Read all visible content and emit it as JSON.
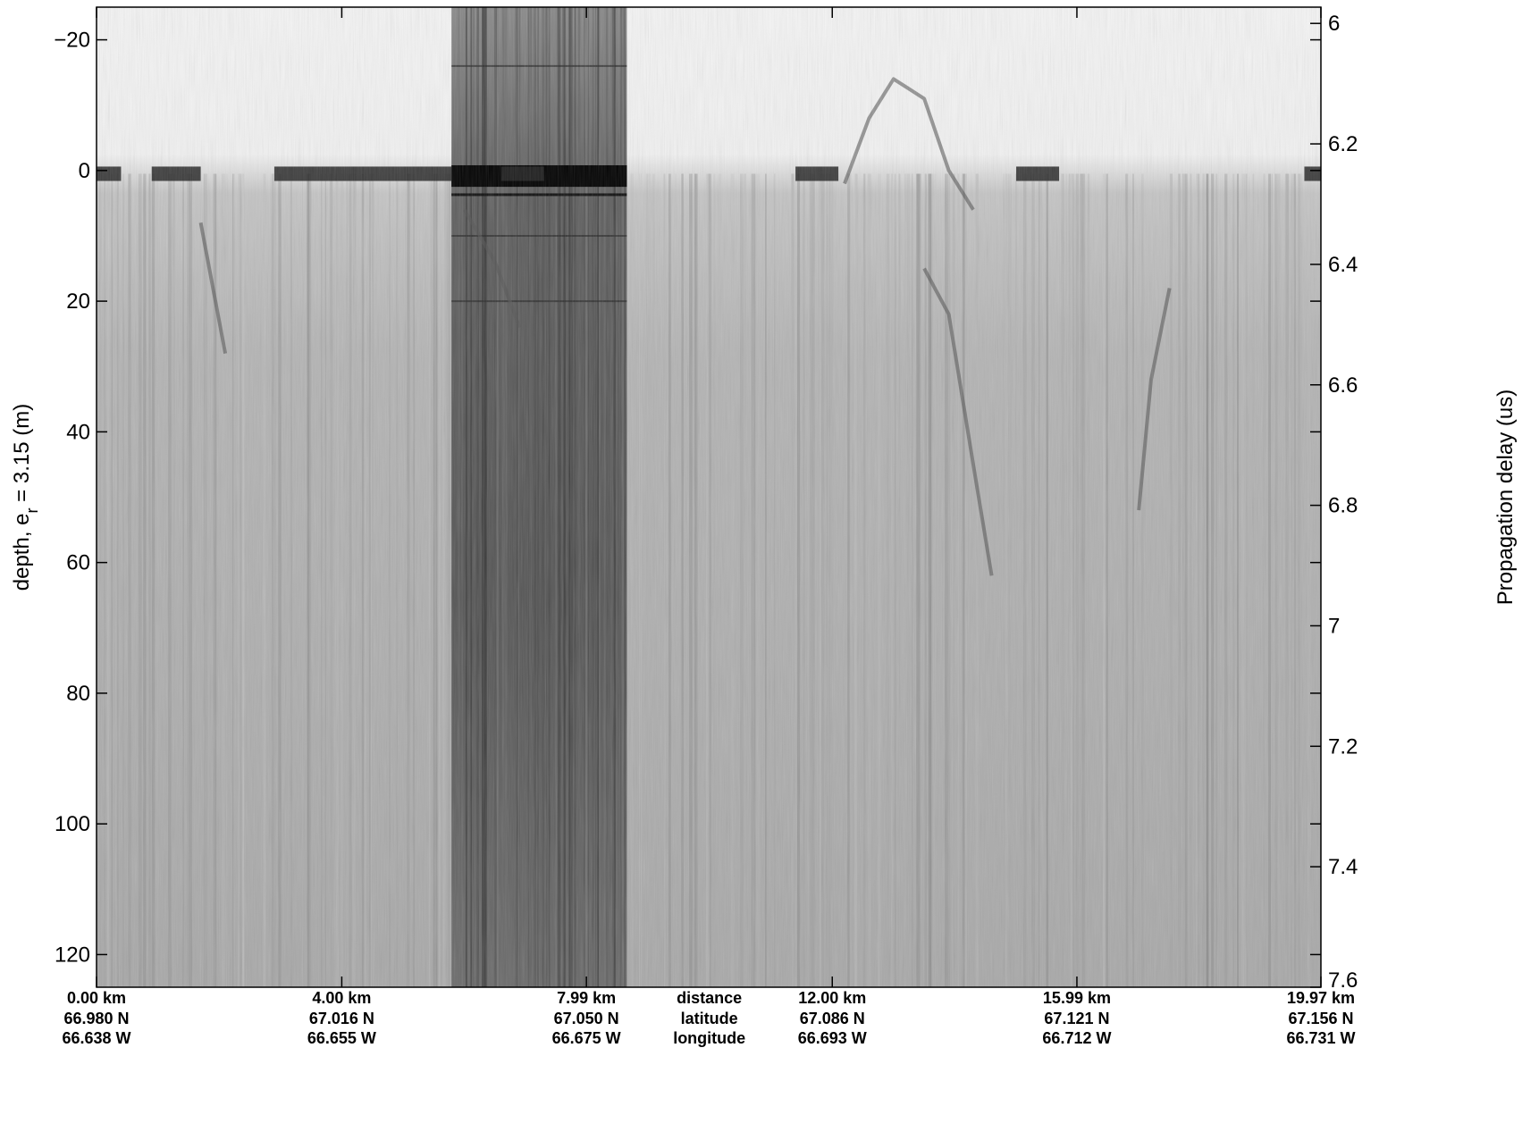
{
  "chart_data": {
    "type": "heatmap",
    "colormap": "grayscale (white = weak return, black = strong return)",
    "left_axis": {
      "label_prefix": "depth, e",
      "label_sub": "r",
      "label_suffix": " = 3.15 (m)",
      "range": [
        -25,
        125
      ],
      "reversed": true,
      "ticks": [
        -20,
        0,
        20,
        40,
        60,
        80,
        100,
        120
      ],
      "tick_labels": [
        "−20",
        "0",
        "20",
        "40",
        "60",
        "80",
        "100",
        "120"
      ]
    },
    "right_axis": {
      "label": "Propagation delay (us)",
      "range": [
        5.973,
        7.6
      ],
      "reversed": true,
      "ticks": [
        6,
        6.2,
        6.4,
        6.6,
        6.8,
        7,
        7.2,
        7.4,
        7.6
      ],
      "tick_labels": [
        "6",
        "6.2",
        "6.4",
        "6.6",
        "6.8",
        "7",
        "7.2",
        "7.4",
        "7.6"
      ]
    },
    "x_axis": {
      "range": [
        0,
        19.97
      ],
      "ticks": [
        0,
        4.0,
        7.99,
        12.0,
        15.99,
        19.97
      ],
      "row_titles": [
        "distance",
        "latitude",
        "longitude"
      ],
      "distance_labels": [
        "0.00 km",
        "4.00 km",
        "7.99 km",
        "12.00 km",
        "15.99 km",
        "19.97 km"
      ],
      "latitude_labels": [
        "66.980 N",
        "67.016 N",
        "67.050 N",
        "67.086 N",
        "67.121 N",
        "67.156 N"
      ],
      "longitude_labels": [
        "66.638 W",
        "66.655 W",
        "66.675 W",
        "66.693 W",
        "66.712 W",
        "66.731 W"
      ]
    },
    "features": {
      "surface_reflection_depth_m": 0,
      "strong_band_km": [
        5.79,
        8.65
      ],
      "surface_segments_km": [
        [
          0.0,
          0.4
        ],
        [
          0.9,
          1.7
        ],
        [
          2.9,
          5.8
        ],
        [
          6.6,
          7.3
        ],
        [
          11.4,
          12.1
        ],
        [
          15.0,
          15.7
        ],
        [
          19.7,
          19.97
        ]
      ],
      "diffraction_curves": [
        {
          "points_km_m": [
            [
              12.2,
              2
            ],
            [
              12.6,
              -8
            ],
            [
              13.0,
              -14
            ],
            [
              13.5,
              -11
            ],
            [
              13.9,
              0
            ],
            [
              14.3,
              6
            ]
          ]
        },
        {
          "points_km_m": [
            [
              13.5,
              15
            ],
            [
              13.9,
              22
            ],
            [
              14.3,
              45
            ],
            [
              14.6,
              62
            ]
          ]
        },
        {
          "points_km_m": [
            [
              17.5,
              18
            ],
            [
              17.2,
              32
            ],
            [
              17.0,
              52
            ]
          ]
        },
        {
          "points_km_m": [
            [
              1.7,
              8
            ],
            [
              1.9,
              18
            ],
            [
              2.1,
              28
            ]
          ]
        },
        {
          "points_km_m": [
            [
              6.0,
              6
            ],
            [
              6.5,
              14
            ],
            [
              6.9,
              24
            ]
          ]
        }
      ]
    }
  }
}
